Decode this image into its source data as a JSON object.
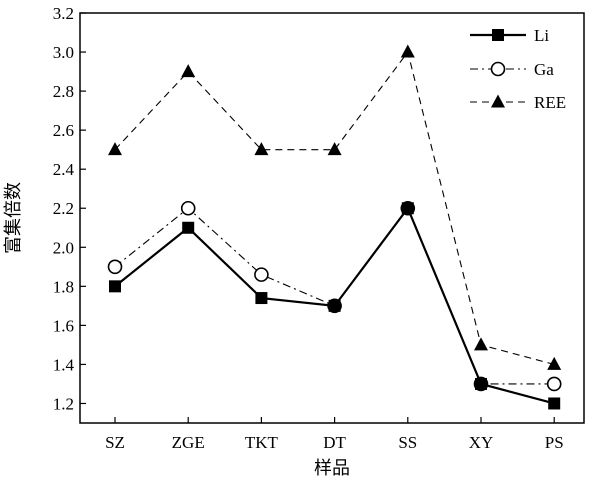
{
  "chart_data": {
    "type": "line",
    "categories": [
      "SZ",
      "ZGE",
      "TKT",
      "DT",
      "SS",
      "XY",
      "PS"
    ],
    "series": [
      {
        "name": "Li",
        "values": [
          1.8,
          2.1,
          1.74,
          1.7,
          2.2,
          1.3,
          1.2
        ],
        "marker": "square",
        "line": "solid",
        "color": "#000000"
      },
      {
        "name": "Ga",
        "values": [
          1.9,
          2.2,
          1.86,
          1.7,
          2.2,
          1.3,
          1.3
        ],
        "marker": "circle",
        "line": "dash-dot",
        "color": "#000000"
      },
      {
        "name": "REE",
        "values": [
          2.5,
          2.9,
          2.5,
          2.5,
          3.0,
          1.5,
          1.4
        ],
        "marker": "triangle",
        "line": "dashed",
        "color": "#000000"
      }
    ],
    "xlabel": "样品",
    "ylabel": "富集倍数",
    "ylim": [
      1.1,
      3.2
    ],
    "yticks": [
      "1.2",
      "1.4",
      "1.6",
      "1.8",
      "2.0",
      "2.2",
      "2.4",
      "2.6",
      "2.8",
      "3.0",
      "3.2"
    ],
    "grid": false,
    "legend_position": "top-right"
  }
}
